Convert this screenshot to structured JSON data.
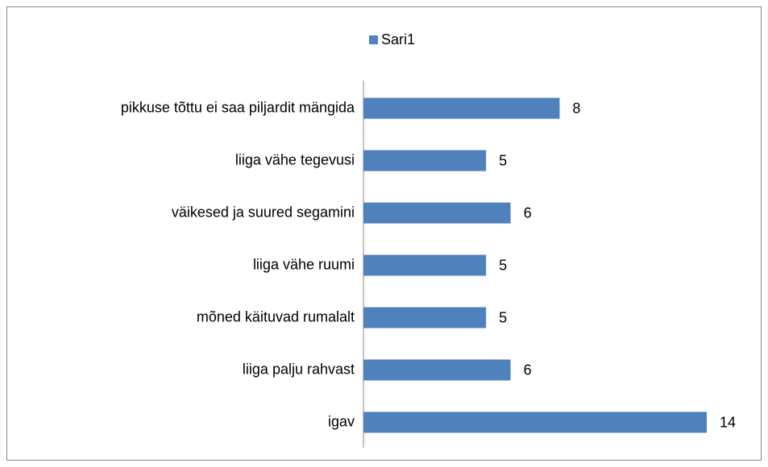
{
  "chart_data": {
    "type": "bar",
    "orientation": "horizontal",
    "categories": [
      "pikkuse tõttu ei saa piljardit mängida",
      "liiga vähe tegevusi",
      "väikesed ja suured segamini",
      "liiga vähe ruumi",
      "mõned käituvad rumalalt",
      "liiga palju rahvast",
      "igav"
    ],
    "series": [
      {
        "name": "Sari1",
        "color": "#4f81bd",
        "values": [
          8,
          5,
          6,
          5,
          5,
          6,
          14
        ]
      }
    ],
    "legend": "top"
  }
}
